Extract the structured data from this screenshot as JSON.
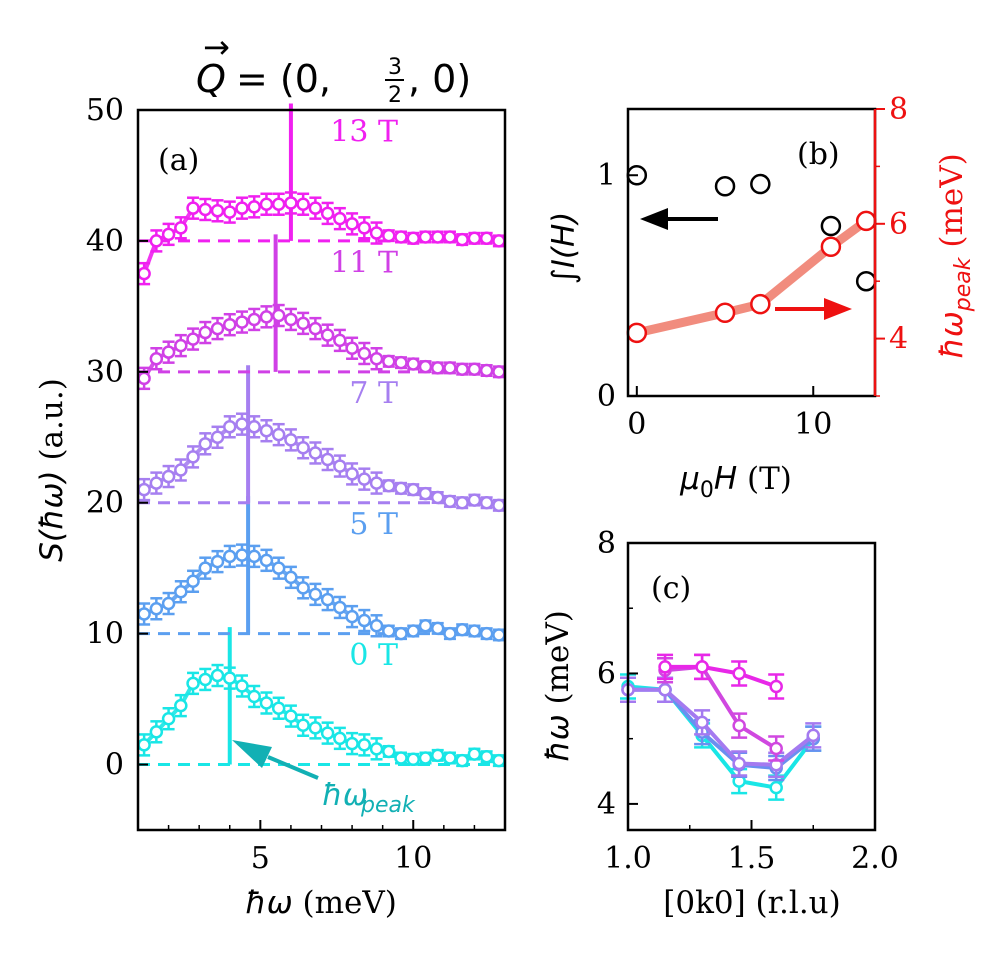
{
  "figure_title": {
    "prefix": "Q",
    "arrow": "→",
    "eq": "= (0,",
    "num": "3",
    "den": "2",
    "suffix": ", 0)"
  },
  "chart_data": [
    {
      "type": "scatter",
      "panel": "a",
      "panel_label": "(a)",
      "xlabel_sym": "ħω",
      "xlabel_unit": " (meV)",
      "ylabel_sym": "S(ħω)",
      "ylabel_unit": " (a.u.)",
      "xlim": [
        1.0,
        13.0
      ],
      "ylim": [
        -5,
        50
      ],
      "xticks": [
        5,
        10
      ],
      "yticks": [
        0,
        10,
        20,
        30,
        40,
        50
      ],
      "annotation": {
        "base": "ħω",
        "sub": "peak"
      },
      "x": [
        1.2,
        1.6,
        2.0,
        2.4,
        2.8,
        3.2,
        3.6,
        4.0,
        4.4,
        4.8,
        5.2,
        5.6,
        6.0,
        6.4,
        6.8,
        7.2,
        7.6,
        8.0,
        8.4,
        8.8,
        9.2,
        9.6,
        10.0,
        10.4,
        10.8,
        11.2,
        11.6,
        12.0,
        12.4,
        12.8
      ],
      "series": [
        {
          "name": "0 T",
          "field_T": 0,
          "color": "#19e6e6",
          "offset": 0,
          "peak": 4.0,
          "values": [
            1.5,
            2.5,
            3.5,
            4.5,
            6.2,
            6.5,
            6.8,
            6.6,
            6.0,
            5.2,
            4.7,
            4.3,
            3.7,
            3.0,
            2.8,
            2.4,
            2.0,
            1.6,
            1.5,
            1.2,
            1.0,
            0.5,
            0.4,
            0.5,
            0.7,
            0.5,
            0.3,
            0.8,
            0.6,
            0.3
          ]
        },
        {
          "name": "5 T",
          "field_T": 5,
          "color": "#5b9ff0",
          "offset": 10,
          "peak": 4.6,
          "values": [
            11.5,
            11.9,
            12.3,
            13.2,
            14.0,
            15.0,
            15.5,
            15.9,
            16.0,
            15.9,
            15.6,
            15.0,
            14.3,
            13.5,
            13.0,
            12.6,
            12.0,
            11.3,
            11.0,
            10.6,
            10.2,
            10.0,
            10.2,
            10.6,
            10.4,
            10.0,
            10.3,
            10.2,
            10.0,
            9.9
          ]
        },
        {
          "name": "7 T",
          "field_T": 7,
          "color": "#a67ff0",
          "offset": 20,
          "peak": 4.6,
          "values": [
            21.0,
            21.5,
            22.0,
            22.5,
            23.5,
            24.5,
            25.0,
            25.8,
            26.0,
            25.8,
            25.5,
            25.2,
            24.8,
            24.2,
            23.8,
            23.3,
            22.8,
            22.2,
            21.8,
            21.5,
            21.3,
            21.1,
            21.0,
            20.7,
            20.4,
            20.1,
            20.0,
            20.2,
            20.0,
            19.8
          ]
        },
        {
          "name": "11 T",
          "field_T": 11,
          "color": "#d040e6",
          "offset": 30,
          "peak": 5.5,
          "values": [
            29.5,
            31.0,
            31.5,
            32.0,
            32.5,
            33.0,
            33.3,
            33.6,
            33.8,
            34.0,
            34.2,
            34.3,
            34.0,
            33.7,
            33.3,
            32.8,
            32.4,
            31.8,
            31.4,
            31.0,
            30.8,
            30.7,
            30.6,
            30.4,
            30.3,
            30.3,
            30.2,
            30.2,
            30.1,
            30.0
          ]
        },
        {
          "name": "13 T",
          "field_T": 13,
          "color": "#f020f0",
          "offset": 40,
          "peak": 6.0,
          "values": [
            37.5,
            40.0,
            40.5,
            41.0,
            42.5,
            42.4,
            42.3,
            42.2,
            42.5,
            42.6,
            42.8,
            42.8,
            42.9,
            42.8,
            42.5,
            42.1,
            41.7,
            41.3,
            41.0,
            40.6,
            40.4,
            40.3,
            40.2,
            40.3,
            40.3,
            40.3,
            40.1,
            40.2,
            40.2,
            40.0
          ]
        }
      ]
    },
    {
      "type": "scatter",
      "panel": "b",
      "panel_label": "(b)",
      "xlabel_sym": "μ",
      "xlabel_sub": "0",
      "xlabel_rest": "H",
      "xlabel_unit": " (T)",
      "ylabel_left_sym": "∫",
      "ylabel_left_rest": "I(H)",
      "ylabel_right_sym": "ħω",
      "ylabel_right_sub": "peak",
      "ylabel_right_unit": " (meV)",
      "xlim": [
        -0.5,
        13.5
      ],
      "ylim_left": [
        0,
        1.3
      ],
      "ylim_right": [
        3,
        8
      ],
      "xticks": [
        0,
        10
      ],
      "yticks_left": [
        0,
        1
      ],
      "yticks_right": [
        4,
        6,
        8
      ],
      "integrated_intensity": {
        "color": "#000000",
        "x": [
          0,
          5,
          7,
          11,
          13
        ],
        "y": [
          1.0,
          0.95,
          0.96,
          0.77,
          0.52
        ]
      },
      "peak_energy": {
        "color": "#ee1111",
        "line_color": "#f08070",
        "x": [
          0,
          5,
          7,
          11,
          13
        ],
        "y": [
          4.1,
          4.45,
          4.6,
          5.6,
          6.05
        ]
      }
    },
    {
      "type": "line",
      "panel": "c",
      "panel_label": "(c)",
      "xlabel": "[0k0] (r.l.u)",
      "ylabel_sym": "ħω",
      "ylabel_unit": " (meV)",
      "xlim": [
        1.0,
        2.0
      ],
      "ylim": [
        3.6,
        8.0
      ],
      "xticks": [
        1.0,
        1.5,
        2.0
      ],
      "yticks": [
        4,
        6,
        8
      ],
      "x": [
        1.0,
        1.15,
        1.3,
        1.45,
        1.6,
        1.75
      ],
      "series": [
        {
          "name": "0 T",
          "color": "#19e6e6",
          "values": [
            5.8,
            5.75,
            5.05,
            4.35,
            4.25,
            5.0
          ]
        },
        {
          "name": "5 T",
          "color": "#6a8ff0",
          "values": [
            5.75,
            5.75,
            5.1,
            4.6,
            4.55,
            5.0
          ]
        },
        {
          "name": "7 T",
          "color": "#a47af0",
          "values": [
            5.75,
            5.75,
            5.25,
            4.62,
            4.6,
            5.05
          ]
        },
        {
          "name": "11 T",
          "color": "#d048e0",
          "values": [
            null,
            6.05,
            6.1,
            5.2,
            4.85,
            null
          ]
        },
        {
          "name": "13 T",
          "color": "#e828e8",
          "values": [
            null,
            6.1,
            6.1,
            6.0,
            5.8,
            null
          ]
        }
      ]
    }
  ]
}
